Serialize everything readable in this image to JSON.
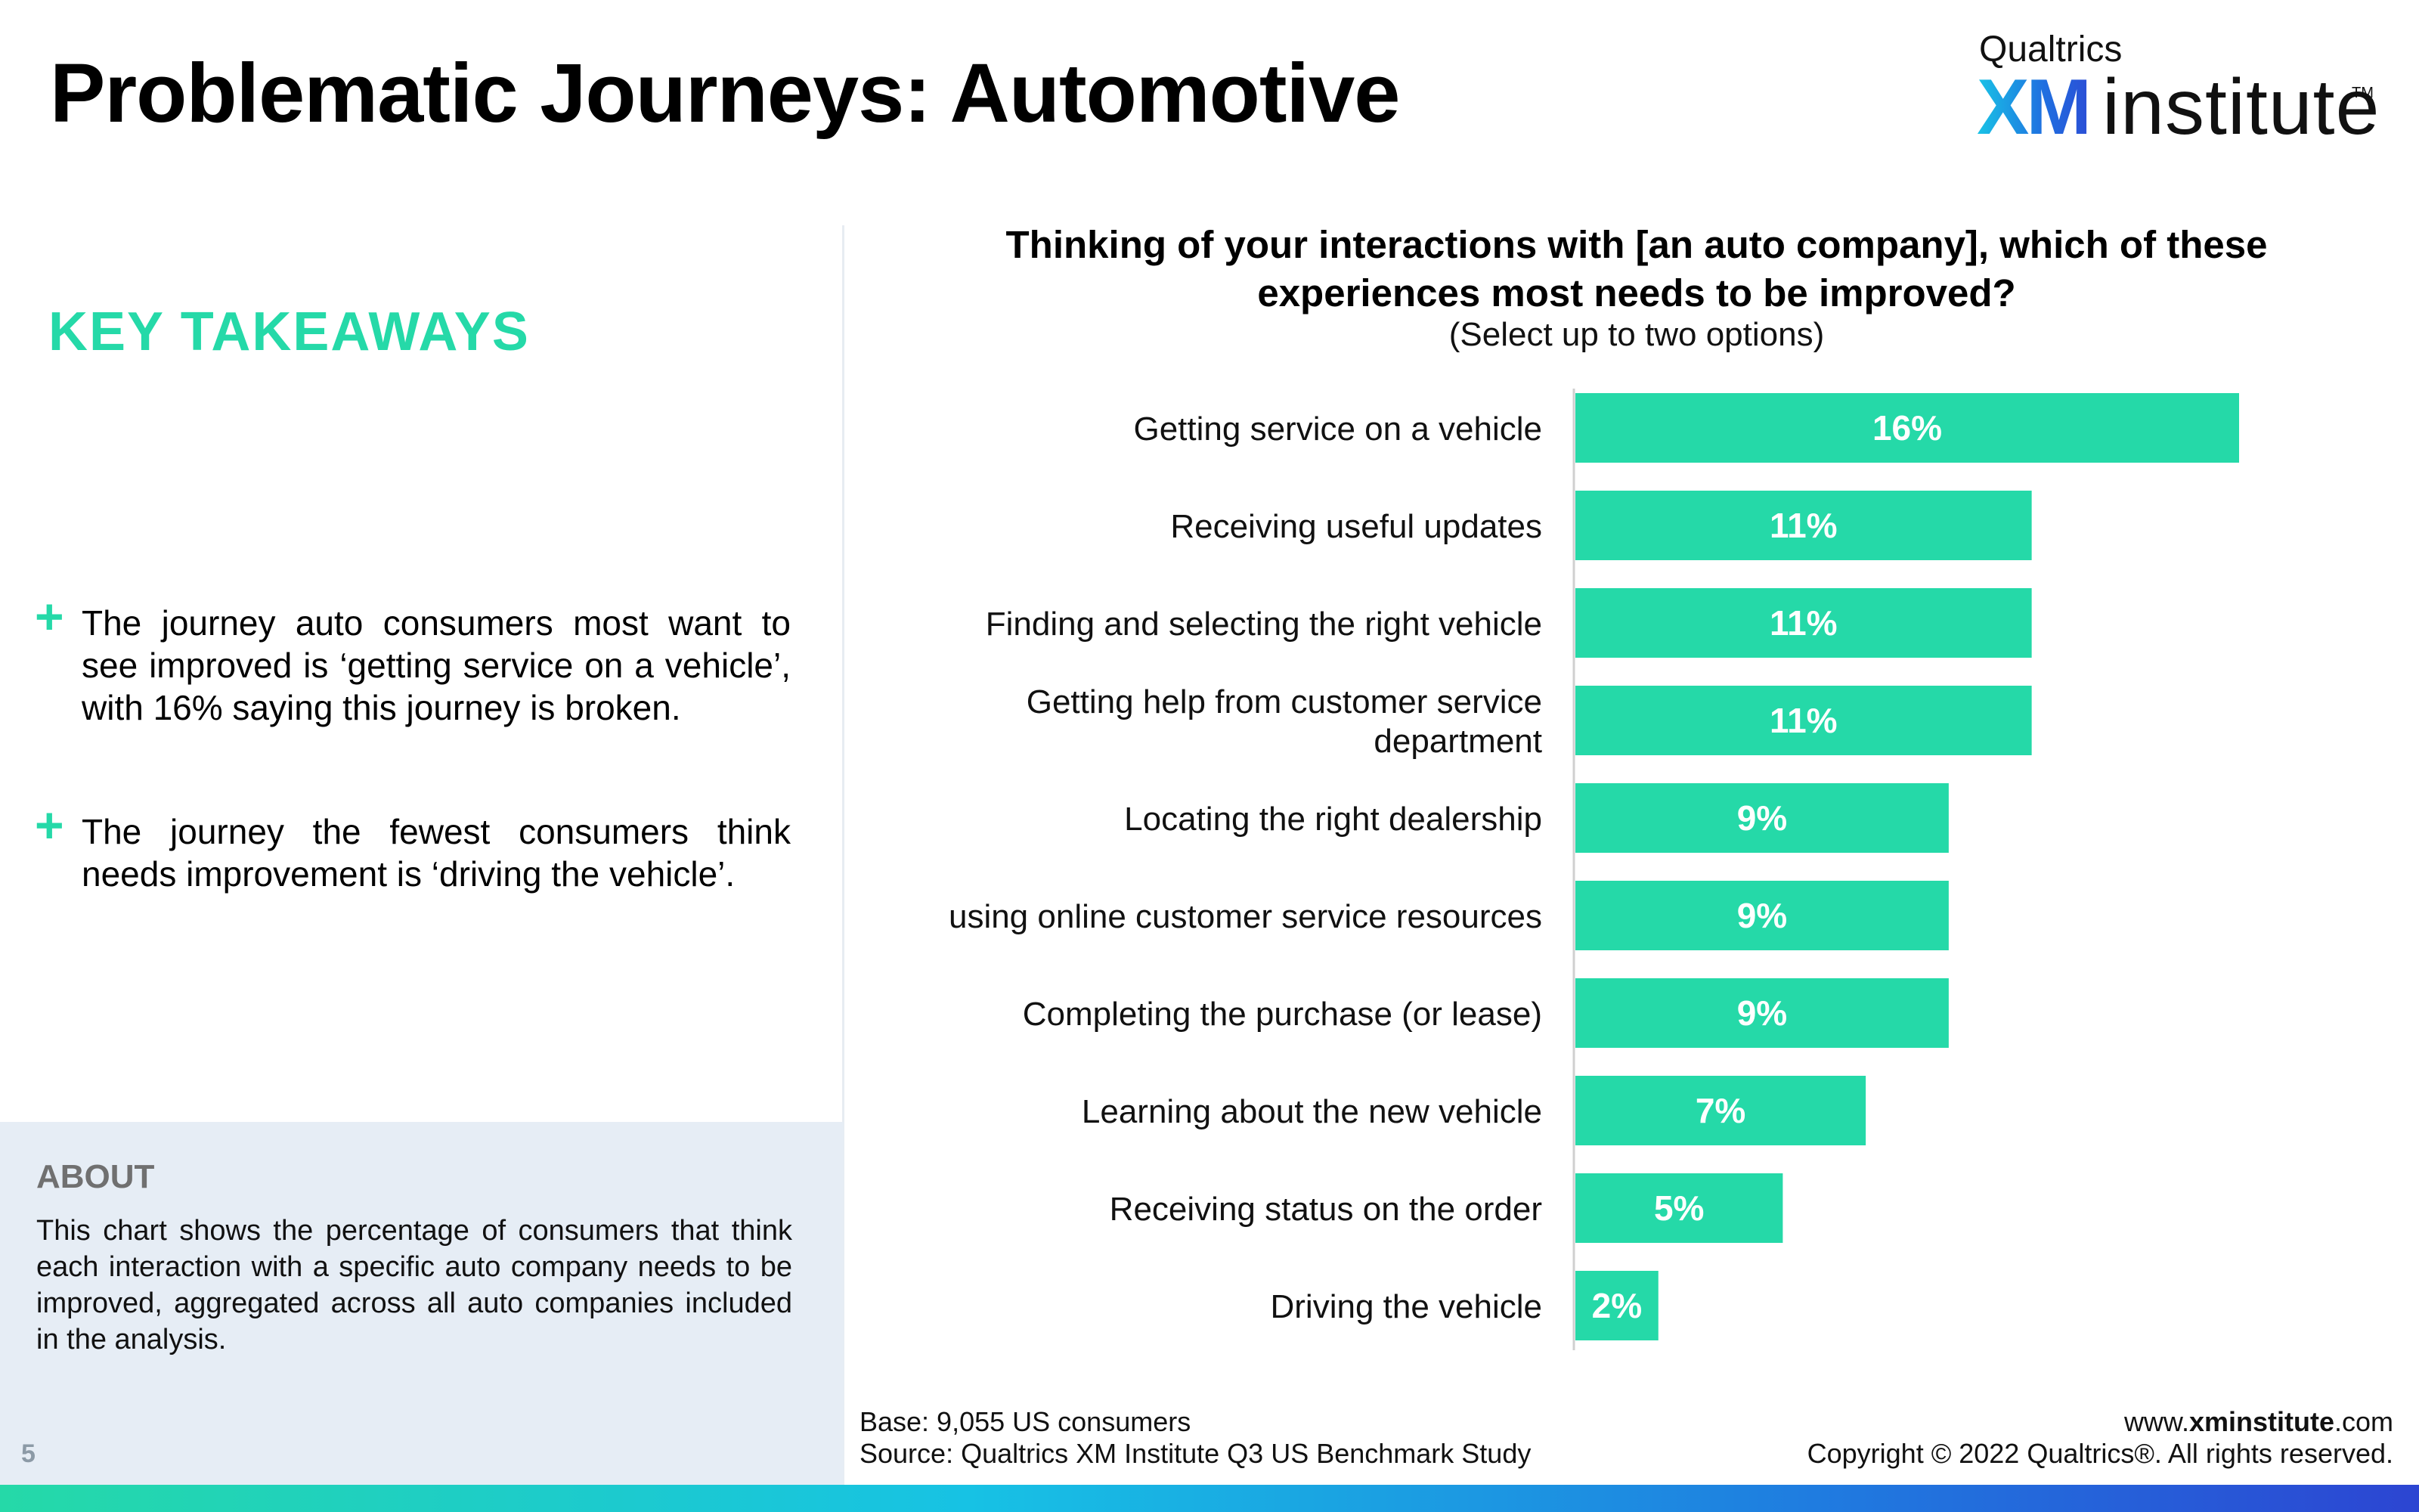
{
  "page": {
    "title": "Problematic Journeys: Automotive",
    "page_number": "5"
  },
  "logo": {
    "top": "Qualtrics",
    "brand": "XM",
    "product": "institute",
    "tm": "TM"
  },
  "takeaways": {
    "heading": "KEY TAKEAWAYS",
    "items": [
      "The journey auto consumers most want to see improved is ‘getting service on a vehicle’, with 16%  saying this journey is broken.",
      "The journey the fewest consumers think needs improvement is ‘driving the vehicle’."
    ]
  },
  "about": {
    "heading": "ABOUT",
    "text": "This chart shows the percentage of consumers that think each interaction with a specific auto company needs to be improved, aggregated across all auto companies included in the analysis."
  },
  "footer": {
    "base": "Base: 9,055 US consumers",
    "source": "Source: Qualtrics XM Institute Q3 US Benchmark Study",
    "url_prefix": "www.",
    "url_bold": "xminstitute",
    "url_suffix": ".com",
    "copyright": "Copyright © 2022 Qualtrics®. All rights reserved."
  },
  "colors": {
    "accent": "#25d9a8",
    "bar": "#25d9a8",
    "bar_label": "#ffffff"
  },
  "chart_data": {
    "type": "bar",
    "orientation": "horizontal",
    "title": "Thinking of your interactions with [an auto company], which of these experiences most needs to be improved?",
    "subtitle": "(Select up to two options)",
    "categories": [
      "Getting service on a vehicle",
      "Receiving useful updates",
      "Finding and selecting the right vehicle",
      "Getting help from customer service department",
      "Locating the right dealership",
      "using online customer service resources",
      "Completing the purchase (or lease)",
      "Learning about the new vehicle",
      "Receiving status on the order",
      "Driving the vehicle"
    ],
    "values": [
      16,
      11,
      11,
      11,
      9,
      9,
      9,
      7,
      5,
      2
    ],
    "value_labels": [
      "16%",
      "11%",
      "11%",
      "11%",
      "9%",
      "9%",
      "9%",
      "7%",
      "5%",
      "2%"
    ],
    "xlim": [
      0,
      20
    ],
    "grid": false,
    "legend": "none"
  }
}
